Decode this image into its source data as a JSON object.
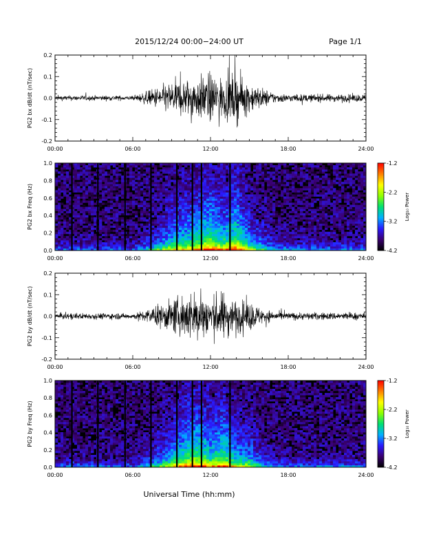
{
  "header": {
    "title": "2015/12/24  00:00−24:00 UT",
    "page": "Page 1/1"
  },
  "footer": {
    "xlabel": "Universal Time (hh:mm)"
  },
  "colorbar": {
    "label": "Log₁₀ Power",
    "ticks": [
      "-1.2",
      "-2.2",
      "-3.2",
      "-4.2"
    ],
    "range": [
      -4.2,
      -1.2
    ],
    "colors": [
      "#000000",
      "#3a0070",
      "#2a1aff",
      "#00b0ff",
      "#00e070",
      "#90ff00",
      "#ffff00",
      "#ff8000",
      "#ff0000"
    ]
  },
  "chart_data": [
    {
      "type": "line",
      "ylabel": "PG2 bx dB/dt (nT/sec)",
      "xticks": [
        "00:00",
        "06:00",
        "12:00",
        "18:00",
        "24:00"
      ],
      "yticks": [
        "0.2",
        "0.1",
        "0.0",
        "-0.1",
        "-0.2"
      ],
      "xlim": [
        0,
        24
      ],
      "ylim": [
        -0.2,
        0.2
      ],
      "series": [
        {
          "x": [
            0,
            1,
            2,
            3,
            4,
            5,
            6,
            7,
            8,
            9,
            10,
            11,
            12,
            13,
            14,
            15,
            16,
            17,
            18,
            19,
            20,
            21,
            22,
            23,
            24
          ],
          "amplitude": [
            0.02,
            0.02,
            0.02,
            0.02,
            0.02,
            0.02,
            0.015,
            0.05,
            0.09,
            0.13,
            0.15,
            0.17,
            0.2,
            0.16,
            0.2,
            0.12,
            0.08,
            0.04,
            0.03,
            0.03,
            0.03,
            0.03,
            0.03,
            0.03,
            0.03
          ]
        }
      ]
    },
    {
      "type": "heatmap",
      "ylabel": "PG2 bx Freq (Hz)",
      "xticks": [
        "00:00",
        "06:00",
        "12:00",
        "18:00",
        "24:00"
      ],
      "yticks": [
        "1.0",
        "0.8",
        "0.6",
        "0.4",
        "0.2",
        "0.0"
      ],
      "xlim": [
        0,
        24
      ],
      "ylim": [
        0,
        1
      ],
      "gaps_hours": [
        1.3,
        3.3,
        5.4,
        7.4,
        9.4,
        10.6,
        11.3,
        13.5
      ]
    },
    {
      "type": "line",
      "ylabel": "PG2 by dB/dt (nT/sec)",
      "xticks": [
        "00:00",
        "06:00",
        "12:00",
        "18:00",
        "24:00"
      ],
      "yticks": [
        "0.2",
        "0.1",
        "0.0",
        "-0.1",
        "-0.2"
      ],
      "xlim": [
        0,
        24
      ],
      "ylim": [
        -0.2,
        0.2
      ],
      "series": [
        {
          "x": [
            0,
            1,
            2,
            3,
            4,
            5,
            6,
            7,
            8,
            9,
            10,
            11,
            12,
            13,
            14,
            15,
            16,
            17,
            18,
            19,
            20,
            21,
            22,
            23,
            24
          ],
          "amplitude": [
            0.025,
            0.025,
            0.025,
            0.025,
            0.025,
            0.025,
            0.02,
            0.05,
            0.09,
            0.13,
            0.18,
            0.2,
            0.16,
            0.19,
            0.13,
            0.12,
            0.06,
            0.035,
            0.03,
            0.03,
            0.03,
            0.03,
            0.03,
            0.03,
            0.03
          ]
        }
      ]
    },
    {
      "type": "heatmap",
      "ylabel": "PG2 by Freq (Hz)",
      "xticks": [
        "00:00",
        "06:00",
        "12:00",
        "18:00",
        "24:00"
      ],
      "yticks": [
        "1.0",
        "0.8",
        "0.6",
        "0.4",
        "0.2",
        "0.0"
      ],
      "xlim": [
        0,
        24
      ],
      "ylim": [
        0,
        1
      ],
      "gaps_hours": [
        1.3,
        3.3,
        5.4,
        7.4,
        9.4,
        10.6,
        11.3,
        13.5
      ]
    }
  ]
}
